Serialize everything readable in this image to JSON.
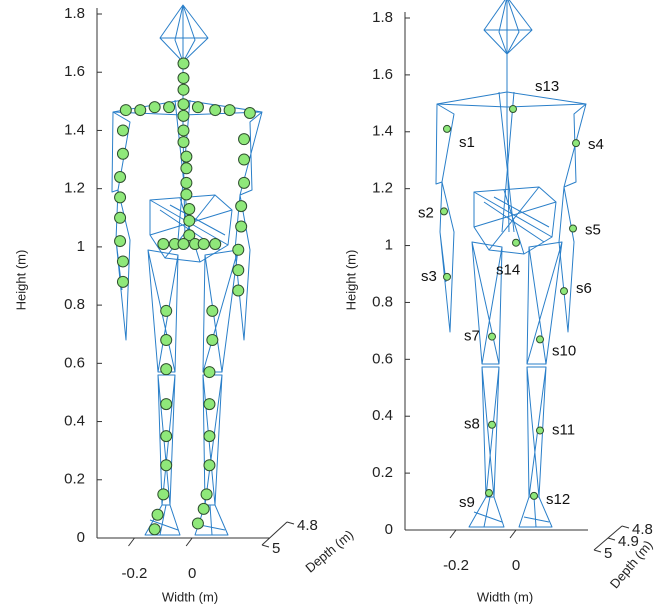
{
  "chart_data": [
    {
      "type": "scatter",
      "xlabel": "Width (m)",
      "ylabel": "Height (m)",
      "zlabel": "Depth (m)",
      "xlim": [
        -0.33,
        0.27
      ],
      "ylim": [
        0,
        1.8
      ],
      "zlim": [
        4.8,
        5
      ],
      "xticks": [
        -0.2,
        0
      ],
      "yticks": [
        0,
        0.2,
        0.4,
        0.6,
        0.8,
        1,
        1.2,
        1.4,
        1.6,
        1.8
      ],
      "zticks": [
        5,
        4.8
      ],
      "color": "#8fe87a",
      "edgecolor": "#2f4f2f",
      "x": [
        -0.03,
        -0.03,
        -0.03,
        -0.03,
        -0.03,
        -0.03,
        -0.03,
        -0.02,
        -0.02,
        -0.02,
        -0.02,
        -0.01,
        -0.01,
        -0.01,
        -0.23,
        -0.18,
        -0.13,
        -0.08,
        0.02,
        0.08,
        0.13,
        0.2,
        -0.24,
        -0.24,
        -0.25,
        -0.25,
        -0.25,
        -0.25,
        -0.24,
        -0.24,
        0.18,
        0.18,
        0.18,
        0.17,
        0.17,
        0.16,
        0.16,
        0.16,
        -0.1,
        -0.06,
        -0.03,
        0.01,
        0.04,
        0.08,
        -0.09,
        -0.09,
        -0.09,
        -0.09,
        -0.09,
        -0.09,
        -0.1,
        -0.12,
        -0.13,
        0.07,
        0.07,
        0.06,
        0.06,
        0.06,
        0.06,
        0.05,
        0.04,
        0.02
      ],
      "values": [
        1.63,
        1.58,
        1.54,
        1.49,
        1.45,
        1.4,
        1.36,
        1.31,
        1.27,
        1.22,
        1.18,
        1.13,
        1.09,
        1.04,
        1.47,
        1.47,
        1.48,
        1.48,
        1.48,
        1.47,
        1.47,
        1.46,
        1.4,
        1.32,
        1.24,
        1.17,
        1.1,
        1.02,
        0.95,
        0.88,
        1.37,
        1.3,
        1.22,
        1.14,
        1.07,
        0.99,
        0.92,
        0.85,
        1.01,
        1.01,
        1.01,
        1.01,
        1.01,
        1.01,
        0.78,
        0.68,
        0.58,
        0.46,
        0.35,
        0.25,
        0.15,
        0.08,
        0.03,
        0.78,
        0.68,
        0.57,
        0.46,
        0.35,
        0.25,
        0.15,
        0.1,
        0.05
      ]
    },
    {
      "type": "scatter",
      "xlabel": "Width (m)",
      "ylabel": "Height (m)",
      "zlabel": "Depth (m)",
      "xlim": [
        -0.37,
        0.24
      ],
      "ylim": [
        0,
        1.8
      ],
      "zlim": [
        4.8,
        5
      ],
      "xticks": [
        -0.2,
        0
      ],
      "yticks": [
        0,
        0.2,
        0.4,
        0.6,
        0.8,
        1,
        1.2,
        1.4,
        1.6,
        1.8
      ],
      "zticks": [
        5,
        4.9,
        4.8
      ],
      "color": "#8fe87a",
      "edgecolor": "#2f4f2f",
      "point_labels": [
        "s1",
        "s2",
        "s3",
        "s4",
        "s5",
        "s6",
        "s7",
        "s8",
        "s9",
        "s10",
        "s11",
        "s12",
        "s13",
        "s14"
      ],
      "x": [
        -0.23,
        -0.24,
        -0.23,
        0.2,
        0.19,
        0.16,
        -0.08,
        -0.08,
        -0.09,
        0.08,
        0.08,
        0.06,
        -0.01,
        0
      ],
      "values": [
        1.41,
        1.12,
        0.89,
        1.36,
        1.06,
        0.84,
        0.68,
        0.37,
        0.13,
        0.67,
        0.35,
        0.12,
        1.48,
        1.01
      ]
    }
  ]
}
